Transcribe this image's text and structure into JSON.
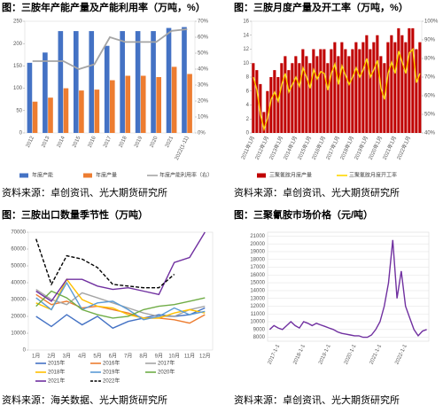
{
  "chart_data": [
    {
      "type": "bar",
      "title": "图：三胺年产能产量及产能利用率（万吨，%）",
      "source": "资料来源：卓创资讯、光大期货研究所",
      "categories": [
        "2012",
        "2013",
        "2014",
        "2015",
        "2016",
        "2017",
        "2018",
        "2019",
        "2020",
        "2021",
        "2022(1-11)"
      ],
      "series": [
        {
          "name": "年度产能",
          "color": "#4472c4",
          "kind": "bar",
          "values": [
            157,
            180,
            228,
            228,
            228,
            195,
            228,
            228,
            228,
            235,
            237
          ]
        },
        {
          "name": "年度产量",
          "color": "#ed7d31",
          "kind": "bar",
          "values": [
            70,
            79,
            100,
            95,
            97,
            118,
            128,
            128,
            125,
            148,
            132
          ]
        },
        {
          "name": "年度产能利用率（右）",
          "color": "#a5a5a5",
          "kind": "line",
          "axis": "y2",
          "values": [
            45,
            45,
            45,
            40,
            43,
            60,
            57,
            57,
            57,
            64,
            65
          ]
        }
      ],
      "ylim": [
        0,
        250
      ],
      "yticks": [
        0,
        50,
        100,
        150,
        200,
        250
      ],
      "y2lim": [
        0,
        70
      ],
      "y2ticks": [
        {
          "value": 0,
          "label": "0%"
        },
        {
          "value": 10,
          "label": "10%"
        },
        {
          "value": 20,
          "label": "20%"
        },
        {
          "value": 30,
          "label": "30%"
        },
        {
          "value": 40,
          "label": "40%"
        },
        {
          "value": 50,
          "label": "50%"
        },
        {
          "value": 60,
          "label": "60%"
        },
        {
          "value": 70,
          "label": "70%"
        }
      ],
      "grid": false
    },
    {
      "type": "bar",
      "title": "图：三胺月度产量及开工率（万吨，%）",
      "source": "资料来源：卓创资讯、光大期货研究所",
      "categories": [
        "2011年1月",
        null,
        null,
        null,
        "2012年1月",
        null,
        null,
        null,
        "2013年1月",
        null,
        null,
        null,
        "2014年1月",
        null,
        null,
        null,
        "2015年1月",
        null,
        null,
        null,
        "2016年1月",
        null,
        null,
        null,
        "2017年1月",
        null,
        null,
        null,
        "2018年1月",
        null,
        null,
        null,
        "2019年1月",
        null,
        null,
        null,
        "2020年1月",
        null,
        null,
        null,
        "2021年1月",
        null,
        null,
        null,
        "2022年1月",
        null,
        null,
        null
      ],
      "series": [
        {
          "name": "三聚氰胺月度产量",
          "color": "#c00000",
          "kind": "bar",
          "values": [
            10,
            9,
            7,
            3,
            6,
            8,
            9,
            8,
            10,
            11,
            9,
            10,
            11,
            10,
            12,
            11,
            10,
            12,
            11,
            12,
            12,
            10,
            12,
            13,
            11,
            13,
            12,
            11,
            12,
            13,
            12,
            13,
            14,
            12,
            13,
            14,
            11,
            10,
            13,
            14,
            13,
            15,
            14,
            13,
            15,
            15,
            12,
            13
          ]
        },
        {
          "name": "三聚氰胺月度开工率",
          "color": "#ffd700",
          "kind": "line",
          "axis": "y2",
          "values": [
            70,
            63,
            50,
            42,
            48,
            58,
            62,
            57,
            66,
            72,
            62,
            66,
            70,
            65,
            75,
            70,
            64,
            74,
            69,
            73,
            72,
            63,
            72,
            77,
            66,
            76,
            71,
            66,
            70,
            75,
            70,
            74,
            80,
            70,
            74,
            79,
            64,
            58,
            72,
            78,
            72,
            84,
            78,
            72,
            83,
            85,
            67,
            72
          ]
        }
      ],
      "ylim": [
        0,
        16
      ],
      "yticks": [
        0,
        2,
        4,
        6,
        8,
        10,
        12,
        14,
        16
      ],
      "y2lim": [
        40,
        100
      ],
      "y2ticks": [
        {
          "value": 40,
          "label": "40%"
        },
        {
          "value": 50,
          "label": "50%"
        },
        {
          "value": 60,
          "label": "60%"
        },
        {
          "value": 70,
          "label": "70%"
        },
        {
          "value": 80,
          "label": "80%"
        },
        {
          "value": 90,
          "label": "90%"
        },
        {
          "value": 100,
          "label": "100%"
        }
      ],
      "grid": false
    },
    {
      "type": "line",
      "title": "图：三胺出口数量季节性（万吨）",
      "source": "资料来源：海关数据、光大期货研究所",
      "categories": [
        "1月",
        "2月",
        "3月",
        "4月",
        "5月",
        "6月",
        "7月",
        "8月",
        "9月",
        "10月",
        "11月",
        "12月"
      ],
      "series": [
        {
          "name": "2015年",
          "color": "#4472c4",
          "kind": "line",
          "values": [
            20000,
            14000,
            21000,
            15000,
            20000,
            13000,
            17000,
            19000,
            21000,
            20000,
            21000,
            25000
          ]
        },
        {
          "name": "2016年",
          "color": "#ed7d31",
          "kind": "line",
          "values": [
            33000,
            27000,
            29000,
            25000,
            26000,
            24000,
            22000,
            19000,
            19000,
            18000,
            16000,
            21000
          ]
        },
        {
          "name": "2017年",
          "color": "#a5a5a5",
          "kind": "line",
          "values": [
            36000,
            30000,
            27000,
            34000,
            31000,
            28000,
            25000,
            22000,
            20000,
            20000,
            24000,
            26000
          ]
        },
        {
          "name": "2018年",
          "color": "#ffc000",
          "kind": "line",
          "values": [
            28000,
            24000,
            42000,
            30000,
            26000,
            25000,
            21000,
            19000,
            19000,
            22000,
            24000,
            22000
          ]
        },
        {
          "name": "2019年",
          "color": "#5b9bd5",
          "kind": "line",
          "values": [
            31000,
            24000,
            40000,
            24000,
            28000,
            29000,
            24000,
            18000,
            20000,
            25000,
            21000,
            23000
          ]
        },
        {
          "name": "2020年",
          "color": "#70ad47",
          "kind": "line",
          "values": [
            26000,
            35000,
            31000,
            24000,
            21000,
            19000,
            20000,
            24000,
            26000,
            27000,
            29000,
            31000
          ]
        },
        {
          "name": "2021年",
          "color": "#7030a0",
          "kind": "line",
          "values": [
            35000,
            29000,
            42000,
            42000,
            38000,
            36000,
            37000,
            35000,
            33000,
            52000,
            55000,
            70000
          ]
        },
        {
          "name": "2022年",
          "color": "#000000",
          "kind": "line",
          "dash": true,
          "values": [
            66000,
            39000,
            56000,
            54000,
            49000,
            39000,
            38000,
            37000,
            37000,
            45000,
            null,
            null
          ]
        }
      ],
      "ylim": [
        0,
        70000
      ],
      "yticks": [
        0,
        10000,
        20000,
        30000,
        40000,
        50000,
        60000,
        70000
      ],
      "grid": false
    },
    {
      "type": "line",
      "title": "图：三聚氰胺市场价格（元/吨）",
      "source": "资料来源：卓创资讯、光大期货研究所",
      "categories": [
        null,
        null,
        "2017-1-1",
        null,
        null,
        null,
        null,
        null,
        "2018-1-1",
        null,
        null,
        null,
        null,
        null,
        "2019-1-1",
        null,
        null,
        null,
        null,
        null,
        "2020-1-1",
        null,
        null,
        null,
        null,
        null,
        "2021-1-1",
        null,
        null,
        null,
        null,
        null,
        "2022-1-1",
        null,
        null,
        null,
        null,
        null
      ],
      "series": [
        {
          "color": "#7030a0",
          "kind": "line",
          "values": [
            9000,
            9500,
            9200,
            9000,
            9500,
            10000,
            9500,
            9200,
            10000,
            9800,
            9500,
            9800,
            9600,
            9400,
            9200,
            9000,
            8700,
            8500,
            8400,
            8300,
            8200,
            8200,
            8000,
            8000,
            8300,
            9000,
            10000,
            12000,
            15000,
            20500,
            13000,
            16500,
            12000,
            10500,
            9000,
            8200,
            8800,
            9000
          ]
        }
      ],
      "ylim": [
        7500,
        21500
      ],
      "yticks": [
        8000,
        9000,
        10000,
        11000,
        12000,
        13000,
        14000,
        15000,
        16000,
        17000,
        18000,
        19000,
        20000,
        21000
      ],
      "grid": true
    }
  ]
}
